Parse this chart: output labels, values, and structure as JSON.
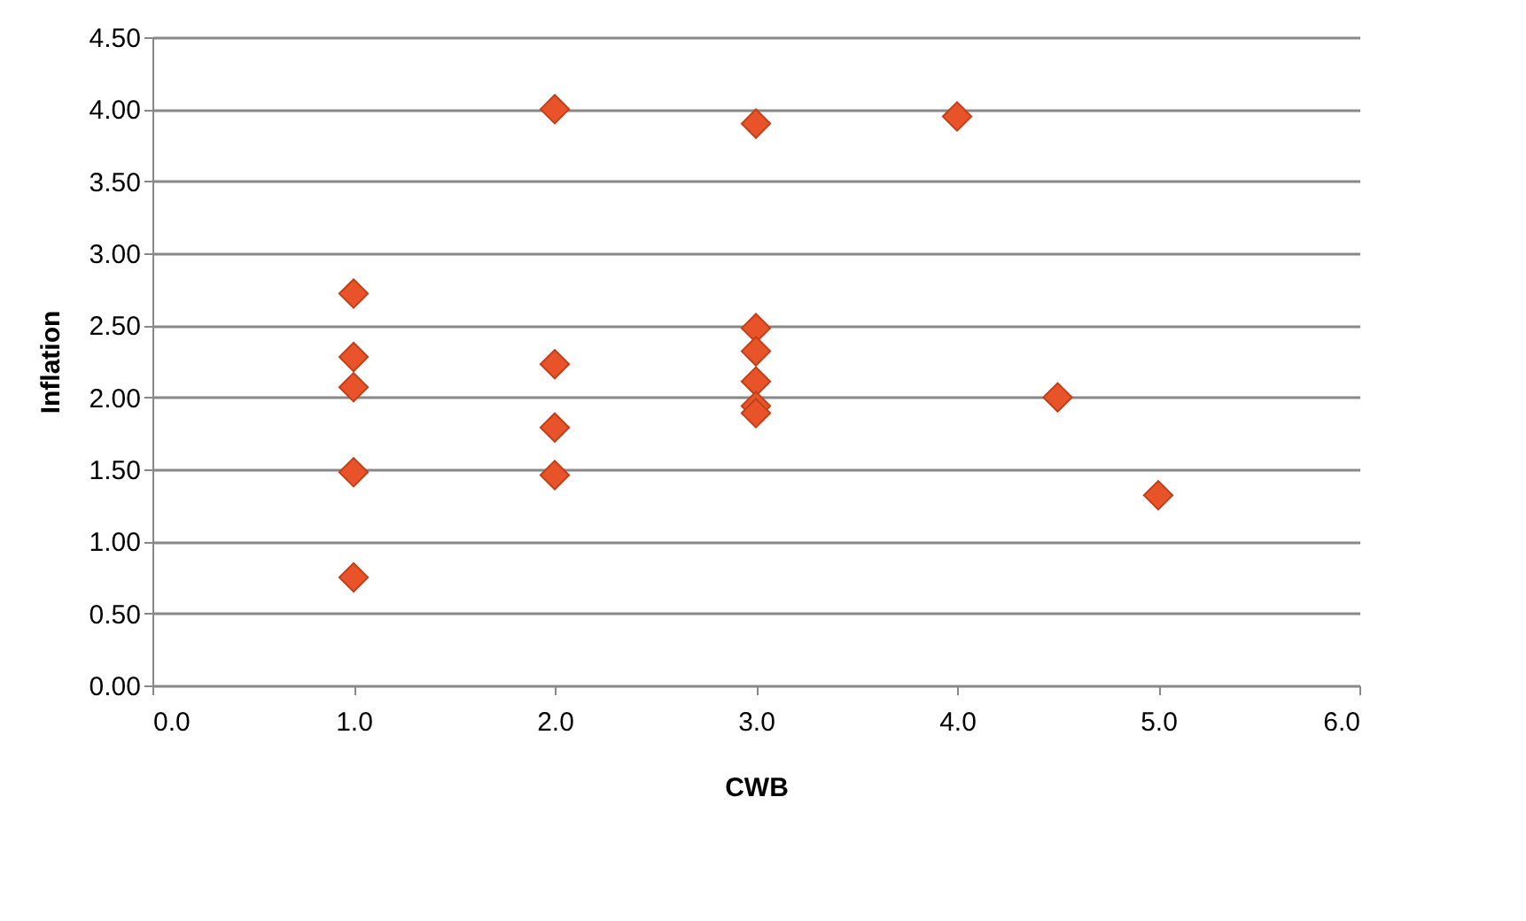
{
  "chart_data": {
    "type": "scatter",
    "xlabel": "CWB",
    "ylabel": "Inflation",
    "x": [
      1,
      1,
      1,
      1,
      1,
      2,
      2,
      2,
      2,
      3,
      3,
      3,
      3,
      3,
      3,
      4,
      4.5,
      5
    ],
    "values": [
      2.72,
      2.28,
      2.07,
      1.48,
      0.75,
      4.0,
      2.23,
      1.79,
      1.46,
      3.9,
      2.48,
      2.32,
      2.11,
      1.94,
      1.89,
      3.95,
      2.0,
      1.32
    ],
    "color": "#e8532a",
    "marker": "diamond",
    "grid": "y",
    "legend": false,
    "xlim": [
      0,
      6
    ],
    "xticks": [
      {
        "value": 0,
        "label": "0.0"
      },
      {
        "value": 1,
        "label": "1.0"
      },
      {
        "value": 2,
        "label": "2.0"
      },
      {
        "value": 3,
        "label": "3.0"
      },
      {
        "value": 4,
        "label": "4.0"
      },
      {
        "value": 5,
        "label": "5.0"
      },
      {
        "value": 6,
        "label": "6.0"
      }
    ],
    "ylim": [
      0,
      4.5
    ],
    "yticks": [
      {
        "value": 0,
        "label": "0.00"
      },
      {
        "value": 0.5,
        "label": "0.50"
      },
      {
        "value": 1,
        "label": "1.00"
      },
      {
        "value": 1.5,
        "label": "1.50"
      },
      {
        "value": 2,
        "label": "2.00"
      },
      {
        "value": 2.5,
        "label": "2.50"
      },
      {
        "value": 3,
        "label": "3.00"
      },
      {
        "value": 3.5,
        "label": "3.50"
      },
      {
        "value": 4,
        "label": "4.00"
      },
      {
        "value": 4.5,
        "label": "4.50"
      }
    ]
  }
}
